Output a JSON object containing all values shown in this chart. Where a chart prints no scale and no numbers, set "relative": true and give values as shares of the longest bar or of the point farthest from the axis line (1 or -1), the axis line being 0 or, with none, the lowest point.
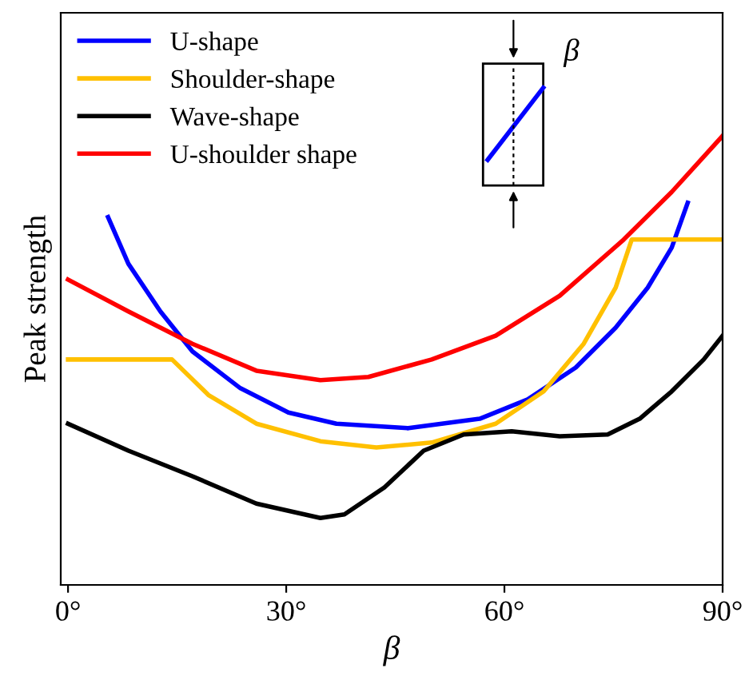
{
  "chart_data": {
    "type": "line",
    "relative": true,
    "xlabel": "β",
    "ylabel": "Peak strength",
    "xlim": [
      -1,
      90
    ],
    "xticks": [
      {
        "value": 0,
        "label": "0°"
      },
      {
        "value": 30,
        "label": "30°"
      },
      {
        "value": 60,
        "label": "60°"
      },
      {
        "value": 90,
        "label": "90°"
      }
    ],
    "legend": "top left",
    "grid": false,
    "marker": "none",
    "line_style": "solid",
    "annotations": [
      "β"
    ],
    "series": [
      {
        "name": "U-shape",
        "color": "#0000ff",
        "x": [
          5.5,
          8.3,
          12.7,
          17.1,
          23.7,
          30.3,
          36.9,
          46.8,
          56.6,
          63.2,
          69.8,
          75.3,
          79.7,
          83.0,
          85.2
        ],
        "values": [
          0.819,
          0.715,
          0.609,
          0.52,
          0.438,
          0.384,
          0.359,
          0.349,
          0.37,
          0.413,
          0.484,
          0.573,
          0.662,
          0.751,
          0.851
        ]
      },
      {
        "name": "Shoulder-shape",
        "color": "#ffc000",
        "x": [
          0,
          14.3,
          19.3,
          25.9,
          34.7,
          42.4,
          50.0,
          58.8,
          65.4,
          70.9,
          75.3,
          77.5,
          90
        ],
        "values": [
          0.502,
          0.502,
          0.423,
          0.359,
          0.32,
          0.306,
          0.317,
          0.359,
          0.431,
          0.537,
          0.662,
          0.769,
          0.769
        ]
      },
      {
        "name": "Wave-shape",
        "color": "#000000",
        "x": [
          0,
          8.3,
          17.1,
          25.9,
          34.7,
          38.0,
          43.5,
          48.9,
          54.4,
          61.0,
          67.6,
          74.2,
          78.6,
          83.0,
          87.4,
          90
        ],
        "values": [
          0.359,
          0.299,
          0.242,
          0.181,
          0.149,
          0.157,
          0.217,
          0.299,
          0.335,
          0.342,
          0.331,
          0.335,
          0.37,
          0.431,
          0.502,
          0.555
        ]
      },
      {
        "name": "U-shoulder shape",
        "color": "#ff0000",
        "x": [
          0,
          8.3,
          17.1,
          25.9,
          34.7,
          41.3,
          50.0,
          58.8,
          67.6,
          76.4,
          83.0,
          90
        ],
        "values": [
          0.68,
          0.609,
          0.537,
          0.477,
          0.456,
          0.463,
          0.502,
          0.555,
          0.644,
          0.769,
          0.875,
          1.0
        ]
      }
    ]
  }
}
